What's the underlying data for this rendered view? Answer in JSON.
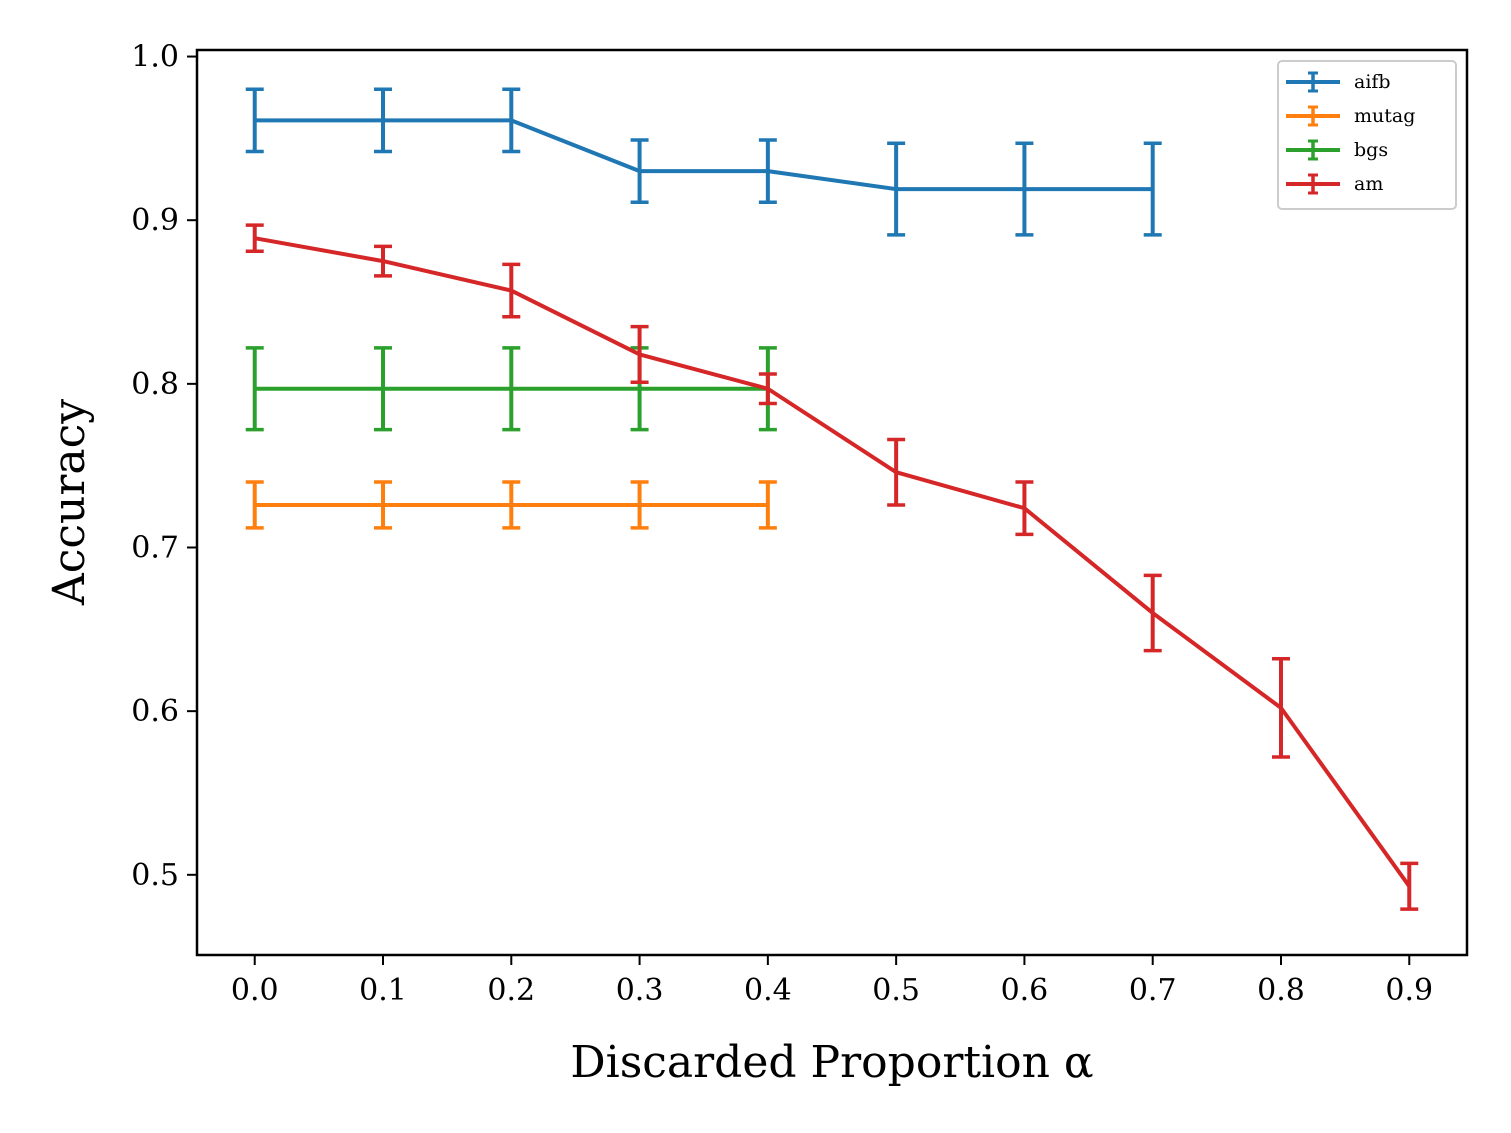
{
  "chart_data": {
    "type": "line",
    "title": "",
    "xlabel": "Discarded Proportion α",
    "ylabel": "Accuracy",
    "xlim": [
      -0.045,
      0.945
    ],
    "ylim": [
      0.451,
      1.004
    ],
    "xticks": [
      "0.0",
      "0.1",
      "0.2",
      "0.3",
      "0.4",
      "0.5",
      "0.6",
      "0.7",
      "0.8",
      "0.9"
    ],
    "yticks": [
      "0.5",
      "0.6",
      "0.7",
      "0.8",
      "0.9",
      "1.0"
    ],
    "legend_position": "top-right",
    "series": [
      {
        "name": "aifb",
        "color": "#1f77b4",
        "x": [
          0.0,
          0.1,
          0.2,
          0.3,
          0.4,
          0.5,
          0.6,
          0.7
        ],
        "y": [
          0.961,
          0.961,
          0.961,
          0.93,
          0.93,
          0.919,
          0.919,
          0.919
        ],
        "err": [
          0.019,
          0.019,
          0.019,
          0.019,
          0.019,
          0.028,
          0.028,
          0.028
        ]
      },
      {
        "name": "mutag",
        "color": "#ff7f0e",
        "x": [
          0.0,
          0.1,
          0.2,
          0.3,
          0.4
        ],
        "y": [
          0.726,
          0.726,
          0.726,
          0.726,
          0.726
        ],
        "err": [
          0.014,
          0.014,
          0.014,
          0.014,
          0.014
        ]
      },
      {
        "name": "bgs",
        "color": "#2ca02c",
        "x": [
          0.0,
          0.1,
          0.2,
          0.3,
          0.4
        ],
        "y": [
          0.797,
          0.797,
          0.797,
          0.797,
          0.797
        ],
        "err": [
          0.025,
          0.025,
          0.025,
          0.025,
          0.025
        ]
      },
      {
        "name": "am",
        "color": "#d62728",
        "x": [
          0.0,
          0.1,
          0.2,
          0.3,
          0.4,
          0.5,
          0.6,
          0.7,
          0.8,
          0.9
        ],
        "y": [
          0.889,
          0.875,
          0.857,
          0.818,
          0.797,
          0.746,
          0.724,
          0.66,
          0.602,
          0.493
        ],
        "err": [
          0.008,
          0.009,
          0.016,
          0.017,
          0.009,
          0.02,
          0.016,
          0.023,
          0.03,
          0.014
        ]
      }
    ]
  }
}
